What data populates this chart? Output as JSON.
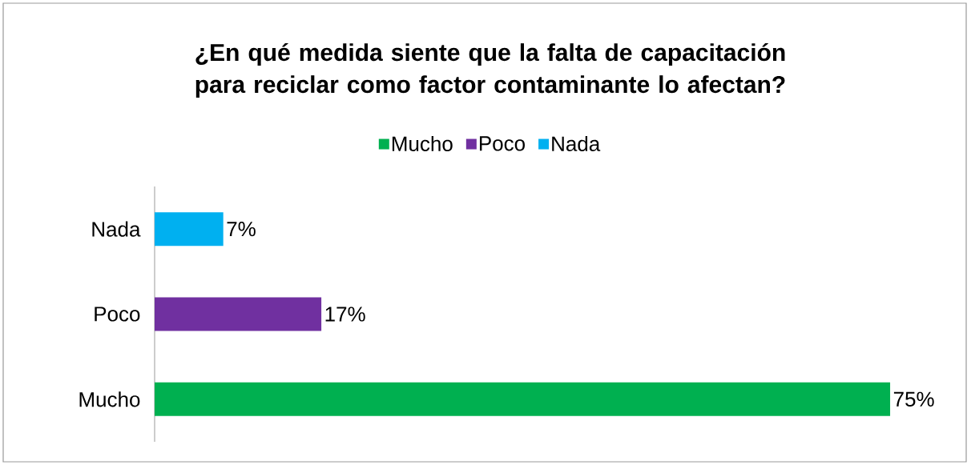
{
  "chart_data": {
    "type": "bar",
    "orientation": "horizontal",
    "stacked": true,
    "title": "¿En qué medida siente que la falta de capacitación para reciclar como factor contaminante lo afectan?",
    "categories": [
      "Nada",
      "Poco",
      "Mucho"
    ],
    "series": [
      {
        "name": "Mucho",
        "color": "#00b050",
        "values": [
          null,
          null,
          75
        ],
        "value_labels": [
          null,
          null,
          "75%"
        ]
      },
      {
        "name": "Poco",
        "color": "#7030a0",
        "values": [
          null,
          17,
          null
        ],
        "value_labels": [
          null,
          "17%",
          null
        ]
      },
      {
        "name": "Nada",
        "color": "#00b0f0",
        "values": [
          7,
          null,
          null
        ],
        "value_labels": [
          "7%",
          null,
          null
        ]
      }
    ],
    "legend": "top"
  }
}
